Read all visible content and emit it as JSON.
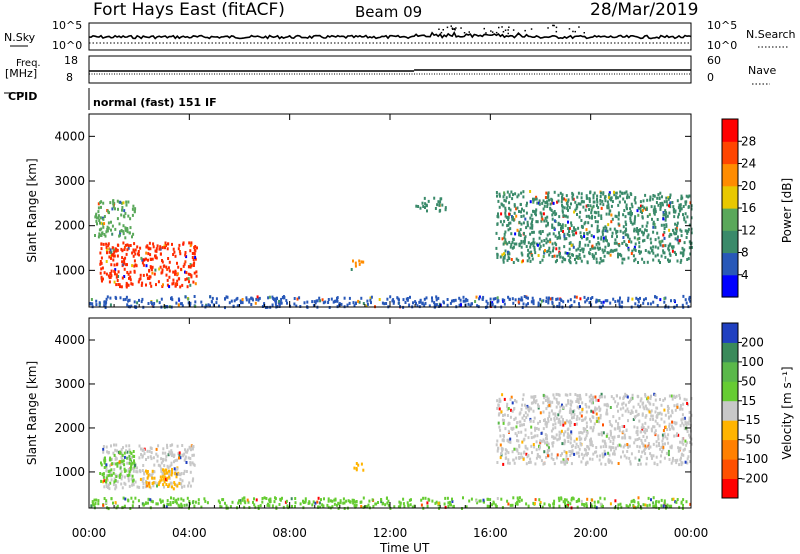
{
  "header": {
    "station": "Fort Hays East (fitACF)",
    "beam": "Beam 09",
    "date": "28/Mar/2019"
  },
  "top_panels": {
    "nsky_label": "N.Sky",
    "nsearch_label": "N.Search",
    "noise_ticks_left": [
      "10^5",
      "10^0"
    ],
    "noise_ticks_right": [
      "10^5",
      "10^0"
    ],
    "freq_label_1": "Freq.",
    "freq_label_2": "[MHz]",
    "freq_ticks": [
      "18",
      "8"
    ],
    "nave_label": "Nave",
    "nave_ticks": [
      "60",
      "0"
    ],
    "cpid_label": "CPID",
    "cpid_text": "normal (fast) 151 IF"
  },
  "chart_data": [
    {
      "type": "heatmap",
      "title": "",
      "xlabel": "Time UT",
      "ylabel": "Slant Range [km]",
      "x_ticks": [
        "00:00",
        "04:00",
        "08:00",
        "12:00",
        "16:00",
        "20:00",
        "00:00"
      ],
      "y_ticks": [
        "1000",
        "2000",
        "3000",
        "4000"
      ],
      "xlim_hours": [
        0,
        24
      ],
      "ylim_km": [
        180,
        4500
      ],
      "colorbar": {
        "label": "Power [dB]",
        "ticks": [
          "4",
          "8",
          "12",
          "16",
          "20",
          "24",
          "28"
        ],
        "colors": [
          "#0000ff",
          "#2858b8",
          "#3a8a6a",
          "#5aa85a",
          "#e8c800",
          "#ff8c00",
          "#ff4500",
          "#ff0000"
        ]
      },
      "regions": [
        {
          "t": [
            0.4,
            4.3
          ],
          "r": [
            650,
            1650
          ],
          "value": "strong",
          "color": "#ff2a00"
        },
        {
          "t": [
            0.2,
            1.8
          ],
          "r": [
            1750,
            2600
          ],
          "value": "mixed",
          "color": "#5aa85a"
        },
        {
          "t": [
            10.4,
            10.9
          ],
          "r": [
            1050,
            1250
          ],
          "value": "mid",
          "color": "#ff8c00"
        },
        {
          "t": [
            13.0,
            14.2
          ],
          "r": [
            2350,
            2650
          ],
          "value": "mixed",
          "color": "#3a8a6a"
        },
        {
          "t": [
            16.2,
            24.0
          ],
          "r": [
            1200,
            2800
          ],
          "value": "mixed",
          "color": "#3a8a6a"
        },
        {
          "t": [
            0.0,
            24.0
          ],
          "r": [
            200,
            450
          ],
          "value": "weak",
          "color": "#2858b8"
        }
      ]
    },
    {
      "type": "heatmap",
      "title": "",
      "xlabel": "Time UT",
      "ylabel": "Slant Range [km]",
      "x_ticks": [
        "00:00",
        "04:00",
        "08:00",
        "12:00",
        "16:00",
        "20:00",
        "00:00"
      ],
      "y_ticks": [
        "1000",
        "2000",
        "3000",
        "4000"
      ],
      "xlim_hours": [
        0,
        24
      ],
      "ylim_km": [
        180,
        4500
      ],
      "colorbar": {
        "label": "Velocity [m s⁻¹]",
        "ticks": [
          "200",
          "100",
          "50",
          "15",
          "-15",
          "-50",
          "-100",
          "-200"
        ],
        "colors": [
          "#2040c0",
          "#3a8a5a",
          "#5ab84a",
          "#66cc33",
          "#c8c8c8",
          "#ffb400",
          "#ff8000",
          "#ff5000",
          "#ff0000"
        ]
      },
      "regions": [
        {
          "t": [
            0.5,
            4.2
          ],
          "r": [
            650,
            1650
          ],
          "value": "ground/low",
          "color": "#c8c8c8"
        },
        {
          "t": [
            0.4,
            1.8
          ],
          "r": [
            800,
            1500
          ],
          "value": "positive",
          "color": "#66cc33"
        },
        {
          "t": [
            2.0,
            3.6
          ],
          "r": [
            650,
            1100
          ],
          "value": "negative",
          "color": "#ffb400"
        },
        {
          "t": [
            10.4,
            10.9
          ],
          "r": [
            1050,
            1250
          ],
          "value": "negative",
          "color": "#ffb400"
        },
        {
          "t": [
            16.2,
            24.0
          ],
          "r": [
            1200,
            2800
          ],
          "value": "low",
          "color": "#c8c8c8"
        },
        {
          "t": [
            0.0,
            24.0
          ],
          "r": [
            200,
            450
          ],
          "value": "low",
          "color": "#66cc33"
        }
      ]
    }
  ]
}
